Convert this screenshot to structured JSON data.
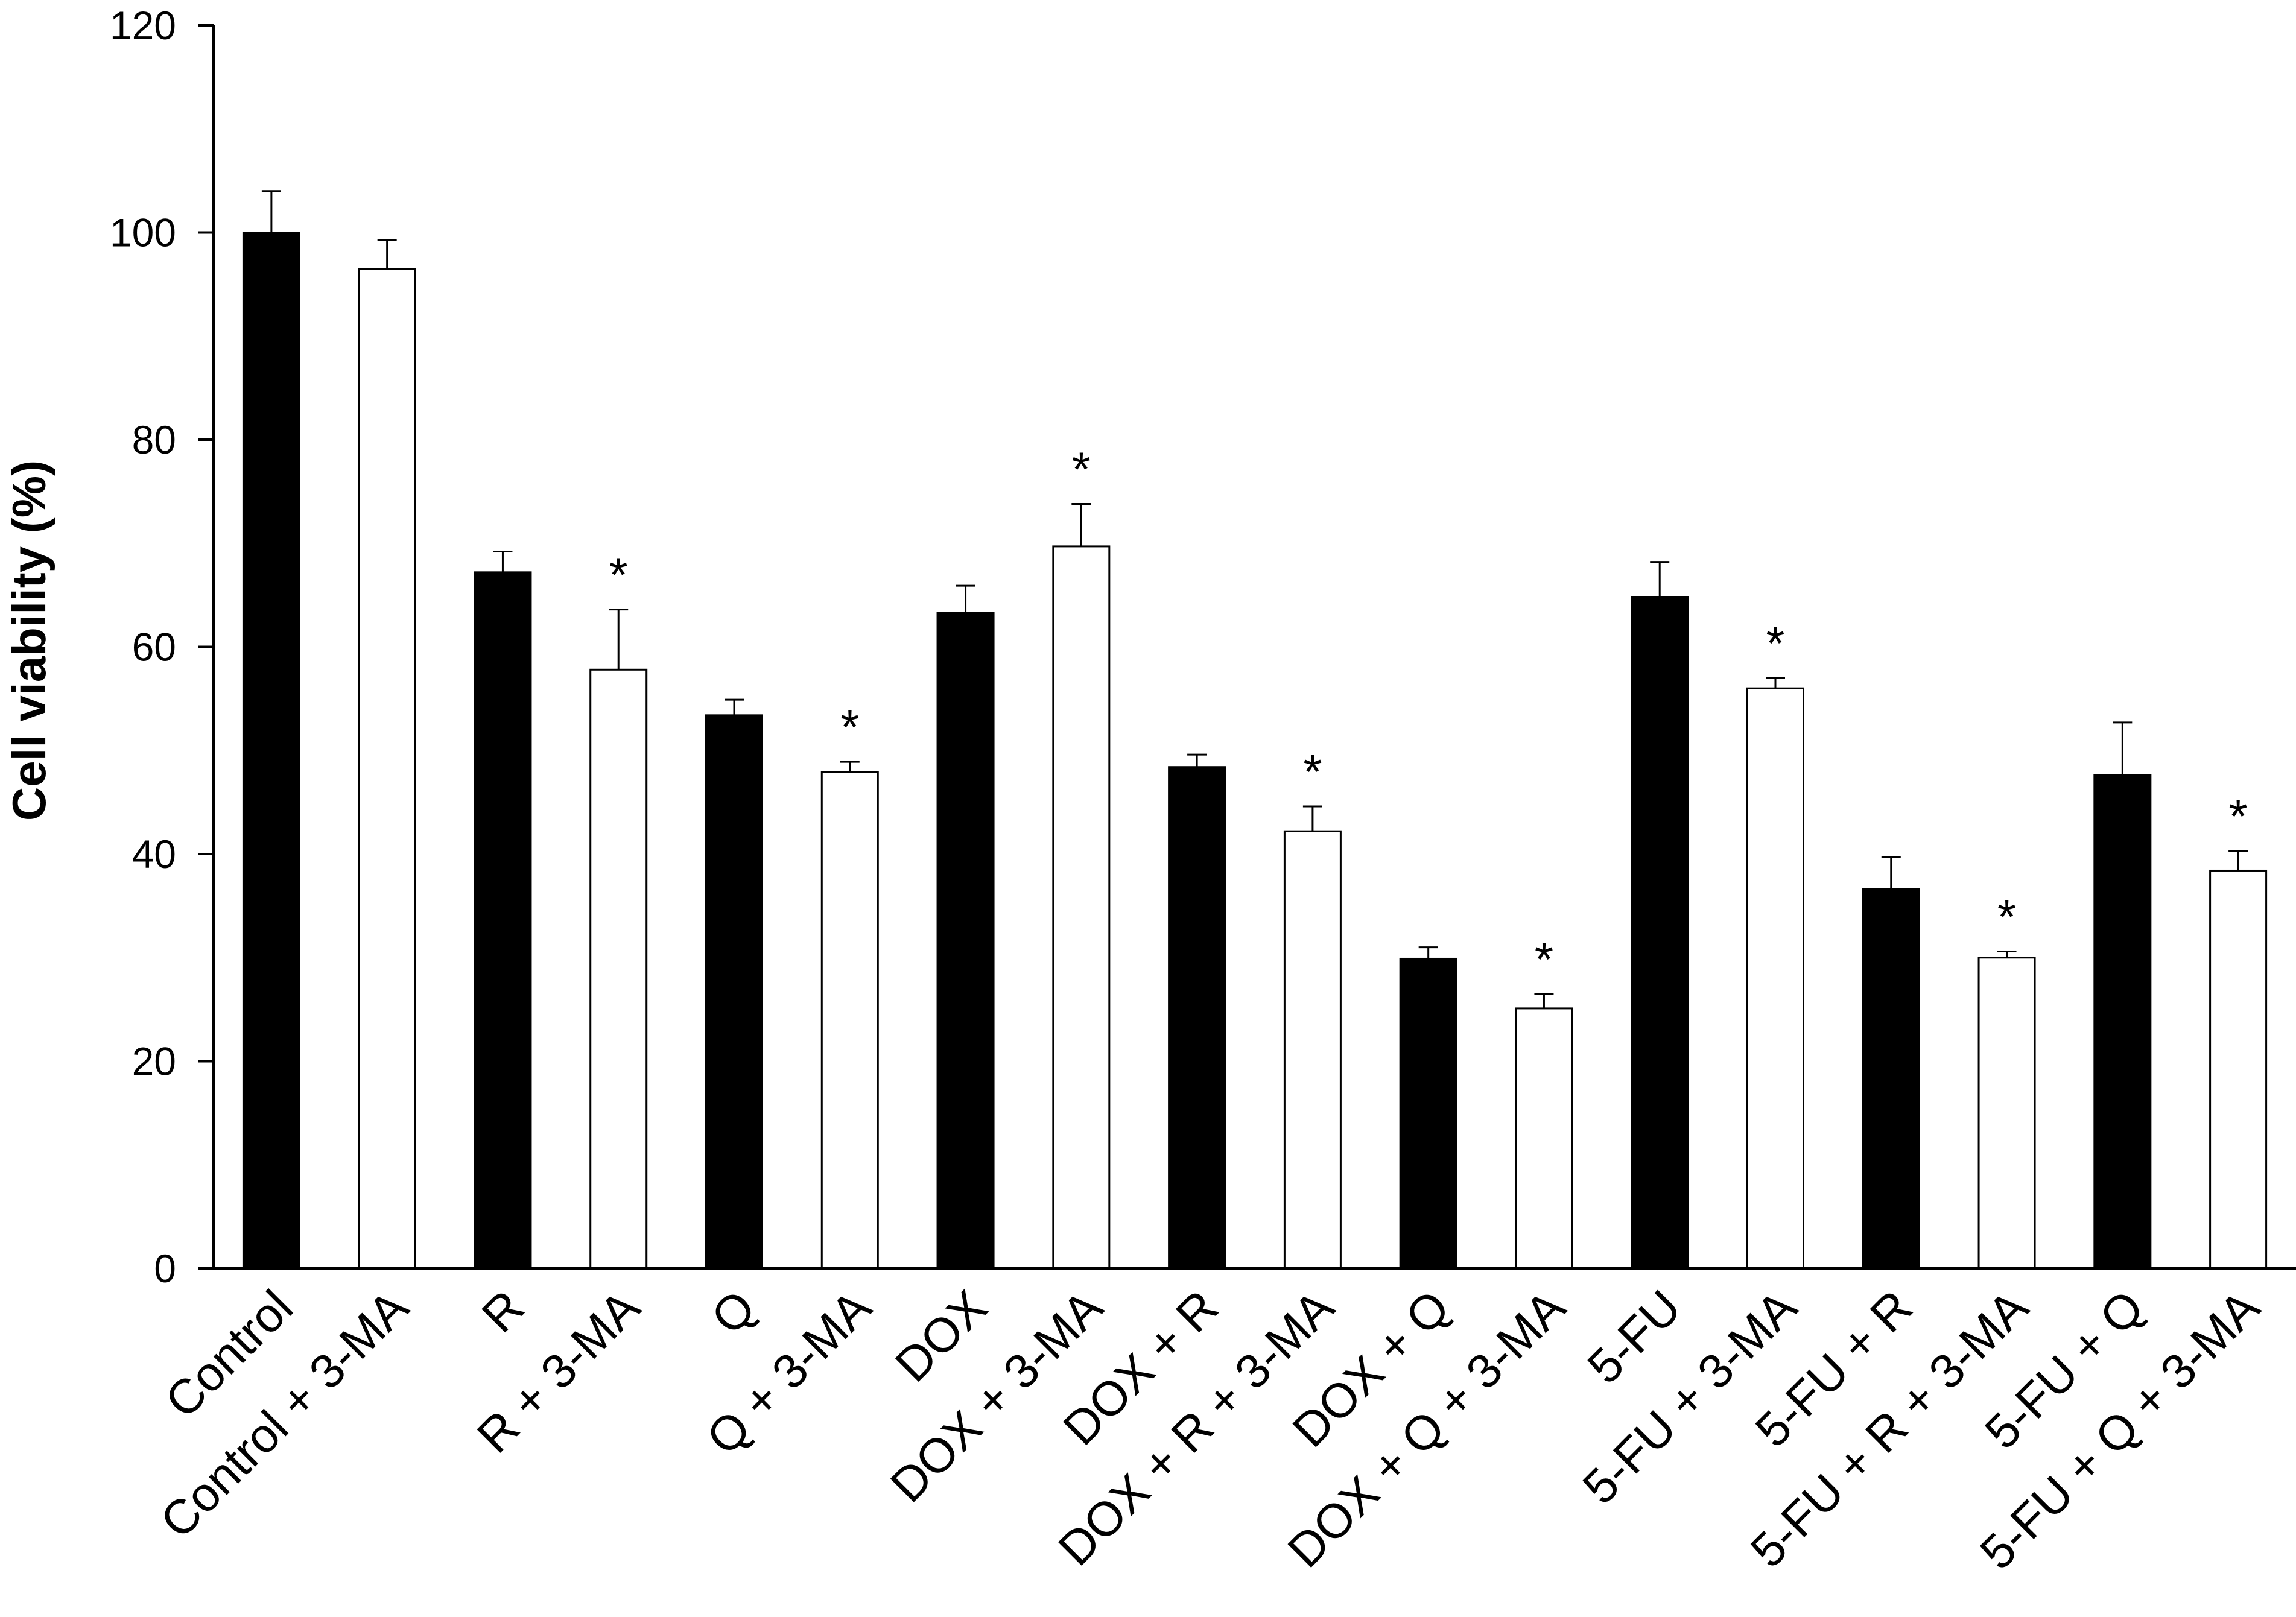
{
  "chart_data": {
    "type": "bar",
    "title": "",
    "xlabel": "",
    "ylabel": "Cell viability (%)",
    "ylim": [
      0,
      120
    ],
    "yticks": [
      "0",
      "20",
      "40",
      "60",
      "80",
      "100",
      "120"
    ],
    "grid": false,
    "legend": "none",
    "categories": [
      "Control",
      "Control + 3-MA",
      "R",
      "R + 3-MA",
      "Q",
      "Q + 3-MA",
      "DOX",
      "DOX + 3-MA",
      "DOX + R",
      "DOX + R + 3-MA",
      "DOX + Q",
      "DOX + Q + 3-MA",
      "5-FU",
      "5-FU + 3-MA",
      "5-FU + R",
      "5-FU + R + 3-MA",
      "5-FU + Q",
      "5-FU + Q + 3-MA"
    ],
    "values": [
      100,
      96.5,
      67.2,
      57.8,
      53.4,
      47.9,
      63.3,
      69.7,
      48.4,
      42.2,
      29.9,
      25.1,
      64.8,
      56.0,
      36.6,
      30.0,
      47.6,
      38.4
    ],
    "errors": [
      4.0,
      2.8,
      2.0,
      5.8,
      1.5,
      1.0,
      2.6,
      4.1,
      1.2,
      2.4,
      1.1,
      1.4,
      3.4,
      1.0,
      3.1,
      0.6,
      5.1,
      1.9
    ],
    "fill_colors": [
      "#000000",
      "#ffffff",
      "#000000",
      "#ffffff",
      "#000000",
      "#ffffff",
      "#000000",
      "#ffffff",
      "#000000",
      "#ffffff",
      "#000000",
      "#ffffff",
      "#000000",
      "#ffffff",
      "#000000",
      "#ffffff",
      "#000000",
      "#ffffff"
    ],
    "significance": [
      "",
      "",
      "",
      "*",
      "",
      "*",
      "",
      "*",
      "",
      "*",
      "",
      "*",
      "",
      "*",
      "",
      "*",
      "",
      "*"
    ]
  }
}
